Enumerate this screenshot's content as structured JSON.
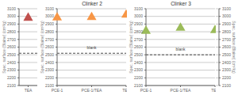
{
  "chart_data": [
    {
      "type": "scatter",
      "categories": [
        "TEA"
      ],
      "values": [
        2980
      ],
      "color": "#c0504d",
      "marker": "triangle",
      "reference_line": {
        "y": 2520,
        "color": "#222222",
        "line_style": "dashed"
      },
      "ylabel": "Spec. surface (Blaine) (cm²/g)",
      "ylim": [
        2100,
        3100
      ],
      "yticks": [
        2100,
        2200,
        2300,
        2400,
        2500,
        2600,
        2700,
        2800,
        2900,
        3000,
        3100
      ],
      "grid": true
    },
    {
      "type": "scatter",
      "title": "Clinker 2",
      "categories": [
        "PCE-1",
        "PCE-1/TEA",
        "TEA"
      ],
      "values": [
        2985,
        2990,
        3020
      ],
      "color": "#f79646",
      "marker": "triangle",
      "reference_line": {
        "y": 2520,
        "label": "blank",
        "color": "#222222",
        "line_style": "dashed"
      },
      "ylabel": "Spec. surface (Blaine) (cm²/g)",
      "ylim": [
        2100,
        3100
      ],
      "yticks": [
        2100,
        2200,
        2300,
        2400,
        2500,
        2600,
        2700,
        2800,
        2900,
        3000,
        3100
      ],
      "grid": true
    },
    {
      "type": "scatter",
      "title": "Clinker 3",
      "categories": [
        "PCE-1",
        "PCE-1/TEA",
        "TEA"
      ],
      "values": [
        2810,
        2850,
        2820
      ],
      "color": "#9bbb59",
      "marker": "triangle",
      "reference_line": {
        "y": 2500,
        "label": "blank",
        "color": "#222222",
        "line_style": "dashed"
      },
      "ylabel": "Spec. surface (Blaine) (cm²/g)",
      "ylim": [
        2100,
        3100
      ],
      "yticks": [
        2100,
        2200,
        2300,
        2400,
        2500,
        2600,
        2700,
        2800,
        2900,
        3000,
        3100
      ],
      "grid": true
    },
    {
      "type": "scatter",
      "categories": [],
      "values": [],
      "ylabel": "Spec. surface (Blaine) (cm²/g)",
      "ylim": [
        2100,
        3100
      ],
      "yticks": [
        2100,
        2200,
        2300,
        2400,
        2500,
        2600,
        2700,
        2800,
        2900,
        3000,
        3100
      ],
      "grid": true
    }
  ]
}
